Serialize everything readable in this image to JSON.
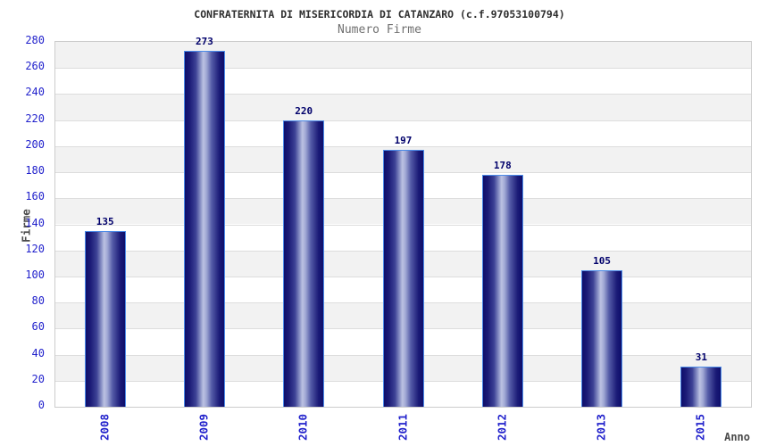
{
  "chart_data": {
    "type": "bar",
    "title": "CONFRATERNITA DI MISERICORDIA DI CATANZARO (c.f.97053100794)",
    "subtitle": "Numero Firme",
    "xlabel": "Anno",
    "ylabel": "Firme",
    "categories": [
      "2008",
      "2009",
      "2010",
      "2011",
      "2012",
      "2013",
      "2015"
    ],
    "values": [
      135,
      273,
      220,
      197,
      178,
      105,
      31
    ],
    "ylim": [
      0,
      280
    ],
    "y_tick_step": 20,
    "y_ticks": [
      0,
      20,
      40,
      60,
      80,
      100,
      120,
      140,
      160,
      180,
      200,
      220,
      240,
      260,
      280
    ],
    "grid": "horizontal-bands-alternating",
    "legend": "none",
    "colors": {
      "tick_label": "#2222CC",
      "value_label": "#00006B",
      "title": "#2E2E2E",
      "subtitle": "#707070",
      "axis_title": "#4A4A4A",
      "band_gray": "#F2F2F2",
      "band_white": "#FFFFFF",
      "gridline": "#DDDDDD",
      "plot_border": "#CCCCCC",
      "bar_edge": "#4C8BE8",
      "bar_dark": "#0E0E6B",
      "bar_mid": "#3D4295",
      "bar_light": "#BCC2E2"
    }
  }
}
